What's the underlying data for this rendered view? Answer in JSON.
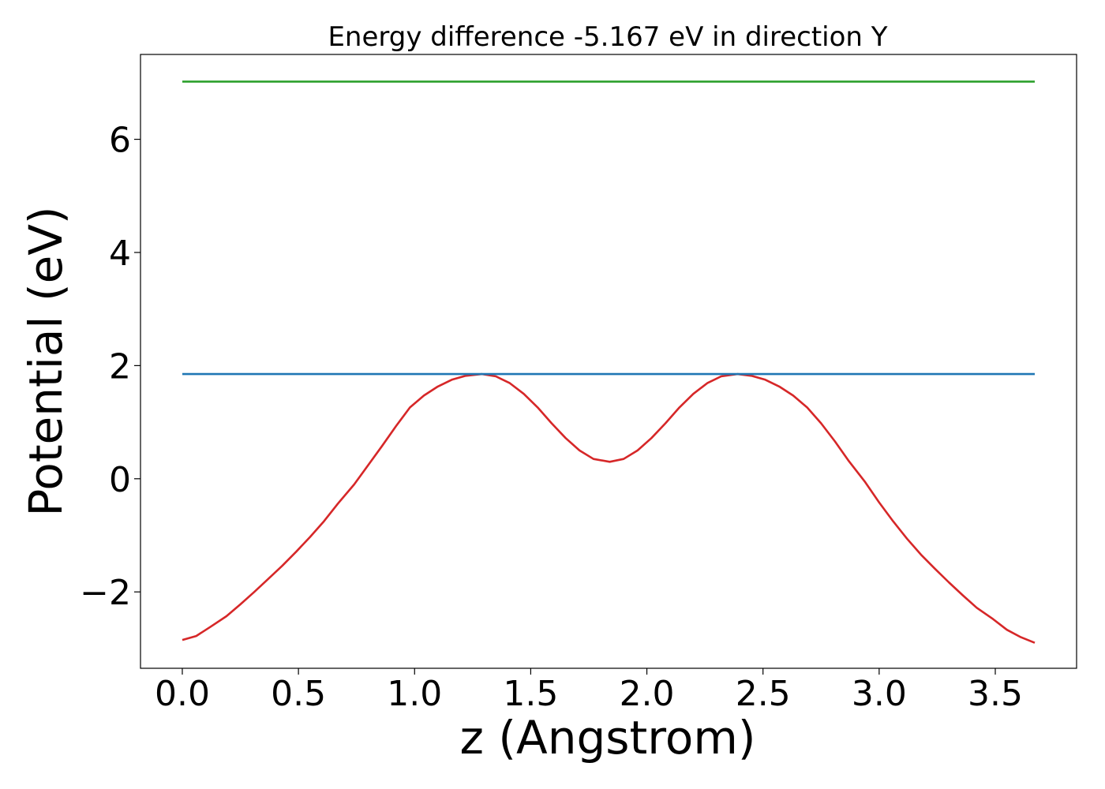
{
  "chart_data": {
    "type": "line",
    "title": "Energy difference -5.167 eV in direction Y",
    "xlabel": "z (Angstrom)",
    "ylabel": "Potential (eV)",
    "xlim": [
      -0.18,
      3.85
    ],
    "ylim": [
      -3.35,
      7.5
    ],
    "xticks": [
      0.0,
      0.5,
      1.0,
      1.5,
      2.0,
      2.5,
      3.0,
      3.5
    ],
    "xtick_labels": [
      "0.0",
      "0.5",
      "1.0",
      "1.5",
      "2.0",
      "2.5",
      "3.0",
      "3.5"
    ],
    "yticks": [
      -2,
      0,
      2,
      4,
      6
    ],
    "ytick_labels": [
      "−2",
      "0",
      "2",
      "4",
      "6"
    ],
    "grid": false,
    "series": [
      {
        "color": "#d62728",
        "x": [
          0.0,
          0.06,
          0.12,
          0.19,
          0.25,
          0.31,
          0.37,
          0.43,
          0.49,
          0.55,
          0.61,
          0.67,
          0.74,
          0.8,
          0.86,
          0.92,
          0.98,
          1.04,
          1.1,
          1.16,
          1.22,
          1.29,
          1.35,
          1.41,
          1.47,
          1.53,
          1.59,
          1.65,
          1.71,
          1.77,
          1.84,
          1.9,
          1.96,
          2.02,
          2.08,
          2.14,
          2.2,
          2.26,
          2.32,
          2.39,
          2.45,
          2.51,
          2.57,
          2.63,
          2.69,
          2.75,
          2.81,
          2.87,
          2.94,
          3.0,
          3.06,
          3.12,
          3.18,
          3.24,
          3.3,
          3.36,
          3.42,
          3.49,
          3.55,
          3.61,
          3.67
        ],
        "y": [
          -2.85,
          -2.78,
          -2.62,
          -2.43,
          -2.22,
          -2.0,
          -1.77,
          -1.54,
          -1.29,
          -1.03,
          -0.75,
          -0.44,
          -0.1,
          0.24,
          0.58,
          0.93,
          1.26,
          1.47,
          1.63,
          1.75,
          1.82,
          1.85,
          1.81,
          1.69,
          1.5,
          1.26,
          0.98,
          0.72,
          0.5,
          0.35,
          0.3,
          0.35,
          0.5,
          0.72,
          0.98,
          1.26,
          1.5,
          1.69,
          1.81,
          1.85,
          1.82,
          1.75,
          1.63,
          1.47,
          1.26,
          0.98,
          0.66,
          0.31,
          -0.06,
          -0.42,
          -0.75,
          -1.06,
          -1.34,
          -1.59,
          -1.83,
          -2.06,
          -2.28,
          -2.48,
          -2.67,
          -2.8,
          -2.9
        ]
      },
      {
        "color": "#1f77b4",
        "x": [
          0.0,
          3.67
        ],
        "y": [
          1.85,
          1.85
        ]
      },
      {
        "color": "#2ca02c",
        "x": [
          0.0,
          3.67
        ],
        "y": [
          7.02,
          7.02
        ]
      }
    ]
  }
}
